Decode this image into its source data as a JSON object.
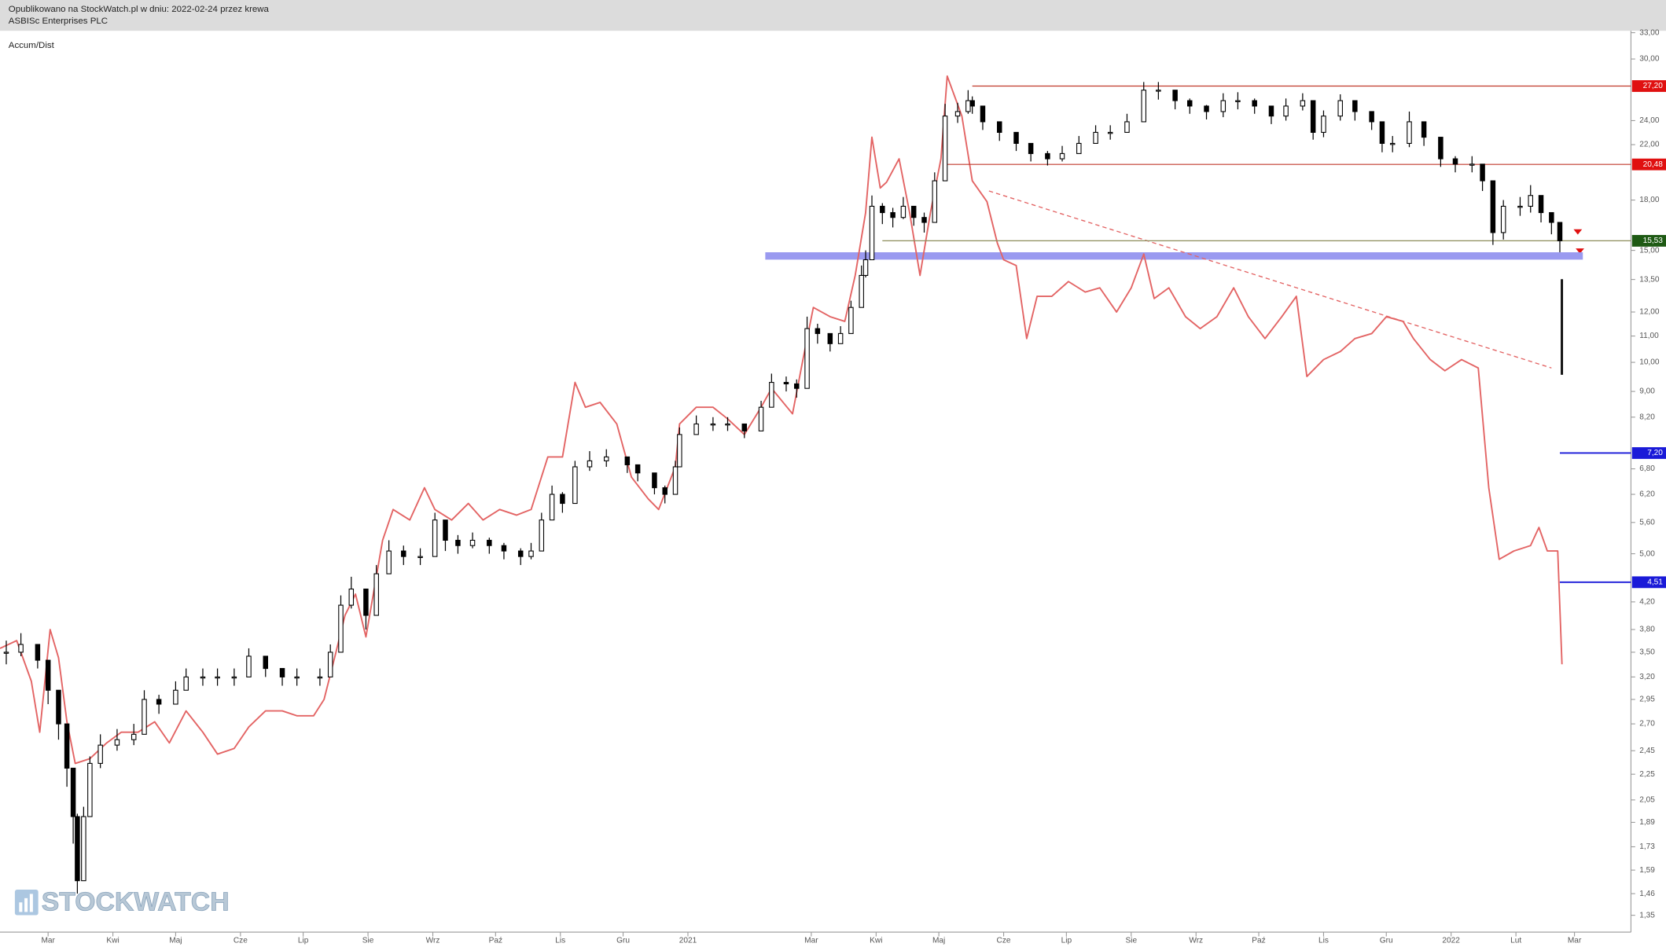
{
  "header": {
    "line1": "Opublikowano na StockWatch.pl w dniu: 2022-02-24 przez krewa",
    "line2": "ASBISc Enterprises PLC"
  },
  "watermark": "STOCKWATCH",
  "chart_data": {
    "type": "candlestick",
    "log_scale": true,
    "color": "#000000",
    "x": [
      40,
      47,
      55,
      60,
      65,
      69,
      72,
      74,
      77,
      80,
      85,
      93,
      101,
      106,
      113,
      121,
      126,
      134,
      141,
      149,
      156,
      164,
      172,
      179,
      190,
      195,
      200,
      205,
      212,
      217,
      223,
      230,
      238,
      245,
      250,
      256,
      263,
      271,
      278,
      286,
      291,
      296,
      301,
      306,
      312,
      319,
      327,
      337,
      342,
      350,
      355,
      360,
      362,
      370,
      378,
      385,
      393,
      401,
      406,
      413,
      418,
      423,
      428,
      434,
      439,
      444,
      449,
      451,
      454,
      459,
      464,
      469,
      474,
      479,
      484,
      489,
      495,
      500,
      502,
      507,
      515,
      523,
      530,
      538,
      545,
      553,
      561,
      568,
      576,
      584,
      591,
      599,
      606,
      614,
      622,
      629,
      637,
      645,
      652,
      660,
      665,
      670,
      678,
      685,
      693,
      698,
      703,
      711,
      718,
      726,
      733,
      741,
      746,
      751,
      756,
      764,
      769,
      774,
      779,
      783
    ],
    "close": [
      3.5,
      3.6,
      3.4,
      3.05,
      2.7,
      2.3,
      1.93,
      1.53,
      1.93,
      2.34,
      2.5,
      2.55,
      2.6,
      2.95,
      2.9,
      3.05,
      3.2,
      3.2,
      3.2,
      3.2,
      3.45,
      3.3,
      3.2,
      3.2,
      3.2,
      3.5,
      4.15,
      4.4,
      4.0,
      4.65,
      5.05,
      4.95,
      4.95,
      5.65,
      5.25,
      5.15,
      5.25,
      5.15,
      5.05,
      4.95,
      5.05,
      5.65,
      6.2,
      6.0,
      6.85,
      7.0,
      7.1,
      6.9,
      6.7,
      6.35,
      6.2,
      6.85,
      7.7,
      8.0,
      8.0,
      8.0,
      7.8,
      8.5,
      9.3,
      9.25,
      9.1,
      11.3,
      11.1,
      10.7,
      11.1,
      12.2,
      13.7,
      14.5,
      17.6,
      17.2,
      16.9,
      17.6,
      16.9,
      16.6,
      19.3,
      24.4,
      24.8,
      25.8,
      25.3,
      23.9,
      23.0,
      22.1,
      21.3,
      20.9,
      21.3,
      22.1,
      23.0,
      23.0,
      23.9,
      26.8,
      26.8,
      25.8,
      25.3,
      24.8,
      25.8,
      25.8,
      25.3,
      24.4,
      25.3,
      25.8,
      23.0,
      24.4,
      25.8,
      24.8,
      23.9,
      22.1,
      22.1,
      23.9,
      22.6,
      20.9,
      20.5,
      20.5,
      19.3,
      16.0,
      17.6,
      17.6,
      18.3,
      17.2,
      16.6,
      15.53
    ],
    "high": [
      3.65,
      3.75,
      3.6,
      3.4,
      3.05,
      2.7,
      2.3,
      1.95,
      2.0,
      2.4,
      2.6,
      2.65,
      2.7,
      3.05,
      3.0,
      3.15,
      3.3,
      3.3,
      3.3,
      3.3,
      3.55,
      3.45,
      3.3,
      3.3,
      3.3,
      3.6,
      4.3,
      4.6,
      4.4,
      4.8,
      5.25,
      5.15,
      5.1,
      5.8,
      5.6,
      5.35,
      5.4,
      5.3,
      5.2,
      5.1,
      5.2,
      5.8,
      6.4,
      6.25,
      7.0,
      7.25,
      7.3,
      7.1,
      6.9,
      6.7,
      6.4,
      7.0,
      7.9,
      8.25,
      8.2,
      8.2,
      8.0,
      8.7,
      9.6,
      9.5,
      9.4,
      11.8,
      11.5,
      11.1,
      11.4,
      12.5,
      14.2,
      15.0,
      18.3,
      17.8,
      17.5,
      18.2,
      17.5,
      17.2,
      19.9,
      25.5,
      25.6,
      26.8,
      26.2,
      25.0,
      23.8,
      22.9,
      22.0,
      21.5,
      21.9,
      22.7,
      23.6,
      23.6,
      24.6,
      27.6,
      27.6,
      26.5,
      26.0,
      25.4,
      26.5,
      26.6,
      26.0,
      25.1,
      26.0,
      26.5,
      25.0,
      24.9,
      26.4,
      25.6,
      24.6,
      22.9,
      22.7,
      24.8,
      23.6,
      21.8,
      21.1,
      21.1,
      20.4,
      17.6,
      18.0,
      18.2,
      19.0,
      18.0,
      17.2,
      16.2
    ],
    "low": [
      3.35,
      3.45,
      3.3,
      2.9,
      2.55,
      2.15,
      1.75,
      1.46,
      1.6,
      2.05,
      2.3,
      2.45,
      2.5,
      2.6,
      2.8,
      2.9,
      3.05,
      3.1,
      3.1,
      3.1,
      3.3,
      3.2,
      3.1,
      3.1,
      3.1,
      3.3,
      3.6,
      4.1,
      3.8,
      4.2,
      4.7,
      4.8,
      4.8,
      5.0,
      5.05,
      5.0,
      5.1,
      5.0,
      4.9,
      4.8,
      4.9,
      5.3,
      5.7,
      5.8,
      6.3,
      6.75,
      6.85,
      6.7,
      6.5,
      6.2,
      6.0,
      6.3,
      6.95,
      7.7,
      7.8,
      7.8,
      7.6,
      7.9,
      8.6,
      9.0,
      8.8,
      9.5,
      10.7,
      10.4,
      10.7,
      11.3,
      12.4,
      13.6,
      14.5,
      16.5,
      16.3,
      16.8,
      16.4,
      16.0,
      16.7,
      19.3,
      23.8,
      24.6,
      24.6,
      23.2,
      22.3,
      21.5,
      20.7,
      20.4,
      20.7,
      21.4,
      22.3,
      22.4,
      23.1,
      24.0,
      25.9,
      25.0,
      24.6,
      24.1,
      24.3,
      25.0,
      24.6,
      23.7,
      24.0,
      24.9,
      22.4,
      22.6,
      24.0,
      24.0,
      23.2,
      21.4,
      21.4,
      21.8,
      21.9,
      20.3,
      19.9,
      19.9,
      18.6,
      15.3,
      15.6,
      17.0,
      17.2,
      16.6,
      15.9,
      14.9
    ],
    "indicator": {
      "type": "line",
      "name": "Accum/Dist",
      "color": "#e36464",
      "x": [
        37,
        45,
        52,
        56,
        61,
        65,
        69,
        73,
        80,
        88,
        95,
        103,
        111,
        118,
        126,
        134,
        141,
        149,
        156,
        164,
        172,
        179,
        187,
        192,
        197,
        202,
        207,
        212,
        220,
        225,
        233,
        240,
        245,
        253,
        261,
        268,
        276,
        284,
        291,
        299,
        306,
        312,
        317,
        324,
        332,
        339,
        347,
        352,
        360,
        362,
        370,
        378,
        385,
        393,
        401,
        406,
        416,
        421,
        426,
        434,
        441,
        446,
        451,
        454,
        458,
        461,
        467,
        472,
        477,
        482,
        487,
        490,
        497,
        502,
        509,
        514,
        517,
        523,
        528,
        533,
        540,
        548,
        556,
        563,
        571,
        578,
        584,
        589,
        596,
        604,
        611,
        619,
        627,
        634,
        642,
        650,
        657,
        662,
        670,
        678,
        685,
        693,
        700,
        708,
        713,
        721,
        728,
        736,
        744,
        749,
        754,
        761,
        769,
        773,
        777,
        782,
        784
      ],
      "values": [
        3.55,
        3.65,
        3.15,
        2.62,
        3.8,
        3.43,
        2.72,
        2.34,
        2.38,
        2.52,
        2.62,
        2.62,
        2.72,
        2.52,
        2.83,
        2.62,
        2.42,
        2.47,
        2.67,
        2.83,
        2.83,
        2.78,
        2.78,
        2.95,
        3.43,
        4.0,
        4.32,
        3.7,
        5.25,
        5.87,
        5.65,
        6.35,
        5.87,
        5.65,
        6.0,
        5.65,
        5.87,
        5.75,
        5.87,
        7.1,
        7.1,
        9.3,
        8.5,
        8.65,
        8.0,
        6.6,
        6.1,
        5.87,
        6.85,
        8.0,
        8.5,
        8.5,
        8.15,
        7.7,
        8.5,
        9.1,
        8.3,
        10.1,
        12.2,
        11.8,
        11.6,
        13.7,
        17.2,
        22.6,
        18.8,
        19.2,
        20.9,
        17.2,
        13.7,
        17.2,
        20.9,
        28.2,
        24.4,
        19.3,
        17.9,
        15.4,
        14.5,
        14.2,
        10.9,
        12.7,
        12.7,
        13.4,
        12.9,
        13.1,
        12.0,
        13.1,
        14.8,
        12.6,
        13.1,
        11.8,
        11.3,
        11.8,
        13.1,
        11.8,
        10.9,
        11.8,
        12.7,
        9.5,
        10.1,
        10.4,
        10.9,
        11.1,
        11.8,
        11.6,
        10.9,
        10.1,
        9.7,
        10.1,
        9.8,
        6.35,
        4.9,
        5.05,
        5.15,
        5.5,
        5.05,
        5.05,
        3.35
      ]
    },
    "levels": [
      {
        "value": 27.2,
        "label": "27,20",
        "color": "#c0392b",
        "label_color": "#e01010",
        "start": 502
      },
      {
        "value": 20.48,
        "label": "20,48",
        "color": "#c0392b",
        "label_color": "#e01010",
        "start": 488
      },
      {
        "value": 15.53,
        "label": "15,53",
        "color": "#8c8c5a",
        "label_color": "#1e5a14",
        "start": 459
      },
      {
        "value": 7.2,
        "label": "7,20",
        "color": "#1a1ad8",
        "label_color": "#1a1ad8",
        "start": 783
      },
      {
        "value": 4.51,
        "label": "4,51",
        "color": "#1a1ad8",
        "label_color": "#1a1ad8",
        "start": 783
      }
    ],
    "band": {
      "value": 14.7,
      "start": 403,
      "end": 794,
      "color": "#9a9af0"
    },
    "trend": {
      "x": [
        510,
        779
      ],
      "values": [
        18.6,
        9.8
      ],
      "color": "#e36464"
    },
    "xlim": [
      37,
      817
    ],
    "xticks": [
      {
        "value": 60,
        "label": "Mar"
      },
      {
        "value": 91,
        "label": "Kwi"
      },
      {
        "value": 121,
        "label": "Maj"
      },
      {
        "value": 152,
        "label": "Cze"
      },
      {
        "value": 182,
        "label": "Lip"
      },
      {
        "value": 213,
        "label": "Sie"
      },
      {
        "value": 244,
        "label": "Wrz"
      },
      {
        "value": 274,
        "label": "Paź"
      },
      {
        "value": 305,
        "label": "Lis"
      },
      {
        "value": 335,
        "label": "Gru"
      },
      {
        "value": 366,
        "label": "2021"
      },
      {
        "value": 425,
        "label": "Mar"
      },
      {
        "value": 456,
        "label": "Kwi"
      },
      {
        "value": 486,
        "label": "Maj"
      },
      {
        "value": 517,
        "label": "Cze"
      },
      {
        "value": 547,
        "label": "Lip"
      },
      {
        "value": 578,
        "label": "Sie"
      },
      {
        "value": 609,
        "label": "Wrz"
      },
      {
        "value": 639,
        "label": "Paź"
      },
      {
        "value": 670,
        "label": "Lis"
      },
      {
        "value": 700,
        "label": "Gru"
      },
      {
        "value": 731,
        "label": "2022"
      },
      {
        "value": 762,
        "label": "Lut"
      },
      {
        "value": 790,
        "label": "Mar"
      }
    ],
    "ylim": [
      1.27,
      33.1
    ],
    "yticks": [
      {
        "value": 33,
        "label": "33,00"
      },
      {
        "value": 30,
        "label": "30,00"
      },
      {
        "value": 24,
        "label": "24,00"
      },
      {
        "value": 22,
        "label": "22,00"
      },
      {
        "value": 18,
        "label": "18,00"
      },
      {
        "value": 15,
        "label": "15,00"
      },
      {
        "value": 13.5,
        "label": "13,50"
      },
      {
        "value": 12,
        "label": "12,00"
      },
      {
        "value": 11,
        "label": "11,00"
      },
      {
        "value": 10,
        "label": "10,00"
      },
      {
        "value": 9,
        "label": "9,00"
      },
      {
        "value": 8.2,
        "label": "8,20"
      },
      {
        "value": 6.8,
        "label": "6,80"
      },
      {
        "value": 6.2,
        "label": "6,20"
      },
      {
        "value": 5.6,
        "label": "5,60"
      },
      {
        "value": 5,
        "label": "5,00"
      },
      {
        "value": 4.2,
        "label": "4,20"
      },
      {
        "value": 3.8,
        "label": "3,80"
      },
      {
        "value": 3.5,
        "label": "3,50"
      },
      {
        "value": 3.2,
        "label": "3,20"
      },
      {
        "value": 2.95,
        "label": "2,95"
      },
      {
        "value": 2.7,
        "label": "2,70"
      },
      {
        "value": 2.45,
        "label": "2,45"
      },
      {
        "value": 2.25,
        "label": "2,25"
      },
      {
        "value": 2.05,
        "label": "2,05"
      },
      {
        "value": 1.89,
        "label": "1,89"
      },
      {
        "value": 1.73,
        "label": "1,73"
      },
      {
        "value": 1.59,
        "label": "1,59"
      },
      {
        "value": 1.46,
        "label": "1,46"
      },
      {
        "value": 1.35,
        "label": "1,35"
      }
    ]
  }
}
